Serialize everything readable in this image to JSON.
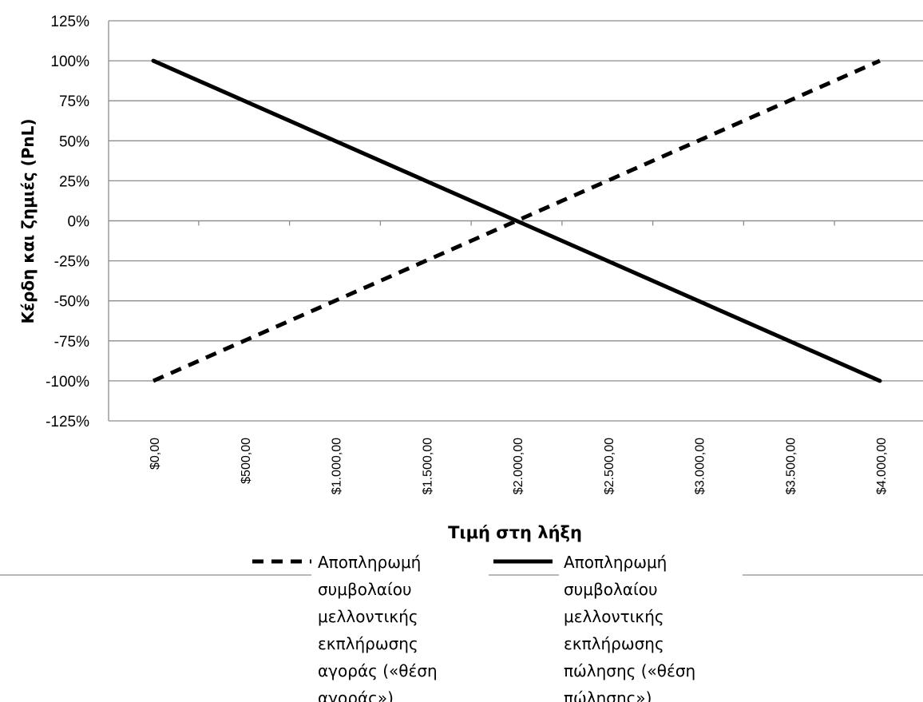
{
  "chart_data": {
    "type": "line",
    "title": "",
    "xlabel": "Τιμή στη λήξη",
    "ylabel": "Κέρδη και ζημιές (PnL)",
    "x": [
      0,
      500,
      1000,
      1500,
      2000,
      2500,
      3000,
      3500,
      4000
    ],
    "x_tick_labels": [
      "$0,00",
      "$500,00",
      "$1.000,00",
      "$1.500,00",
      "$2.000,00",
      "$2.500,00",
      "$3.000,00",
      "$3.500,00",
      "$4.000,00"
    ],
    "ylim": [
      -125,
      125
    ],
    "y_ticks": [
      125,
      100,
      75,
      50,
      25,
      0,
      -25,
      -50,
      -75,
      -100,
      -125
    ],
    "y_tick_labels": [
      "125%",
      "100%",
      "75%",
      "50%",
      "25%",
      "0%",
      "-25%",
      "-50%",
      "-75%",
      "-100%",
      "-125%"
    ],
    "grid": true,
    "legend_position": "bottom",
    "series": [
      {
        "name": "Αποπληρωμή συμβολαίου μελλοντικής εκπλήρωσης αγοράς («θέση αγοράς»)",
        "style": "dashed",
        "color": "#000000",
        "values": [
          -100,
          -75,
          -50,
          -25,
          0,
          25,
          50,
          75,
          100
        ]
      },
      {
        "name": "Αποπληρωμή συμβολαίου μελλοντικής εκπλήρωσης πώλησης («θέση πώλησης»)",
        "style": "solid",
        "color": "#000000",
        "values": [
          100,
          75,
          50,
          25,
          0,
          -25,
          -50,
          -75,
          -100
        ]
      }
    ]
  }
}
